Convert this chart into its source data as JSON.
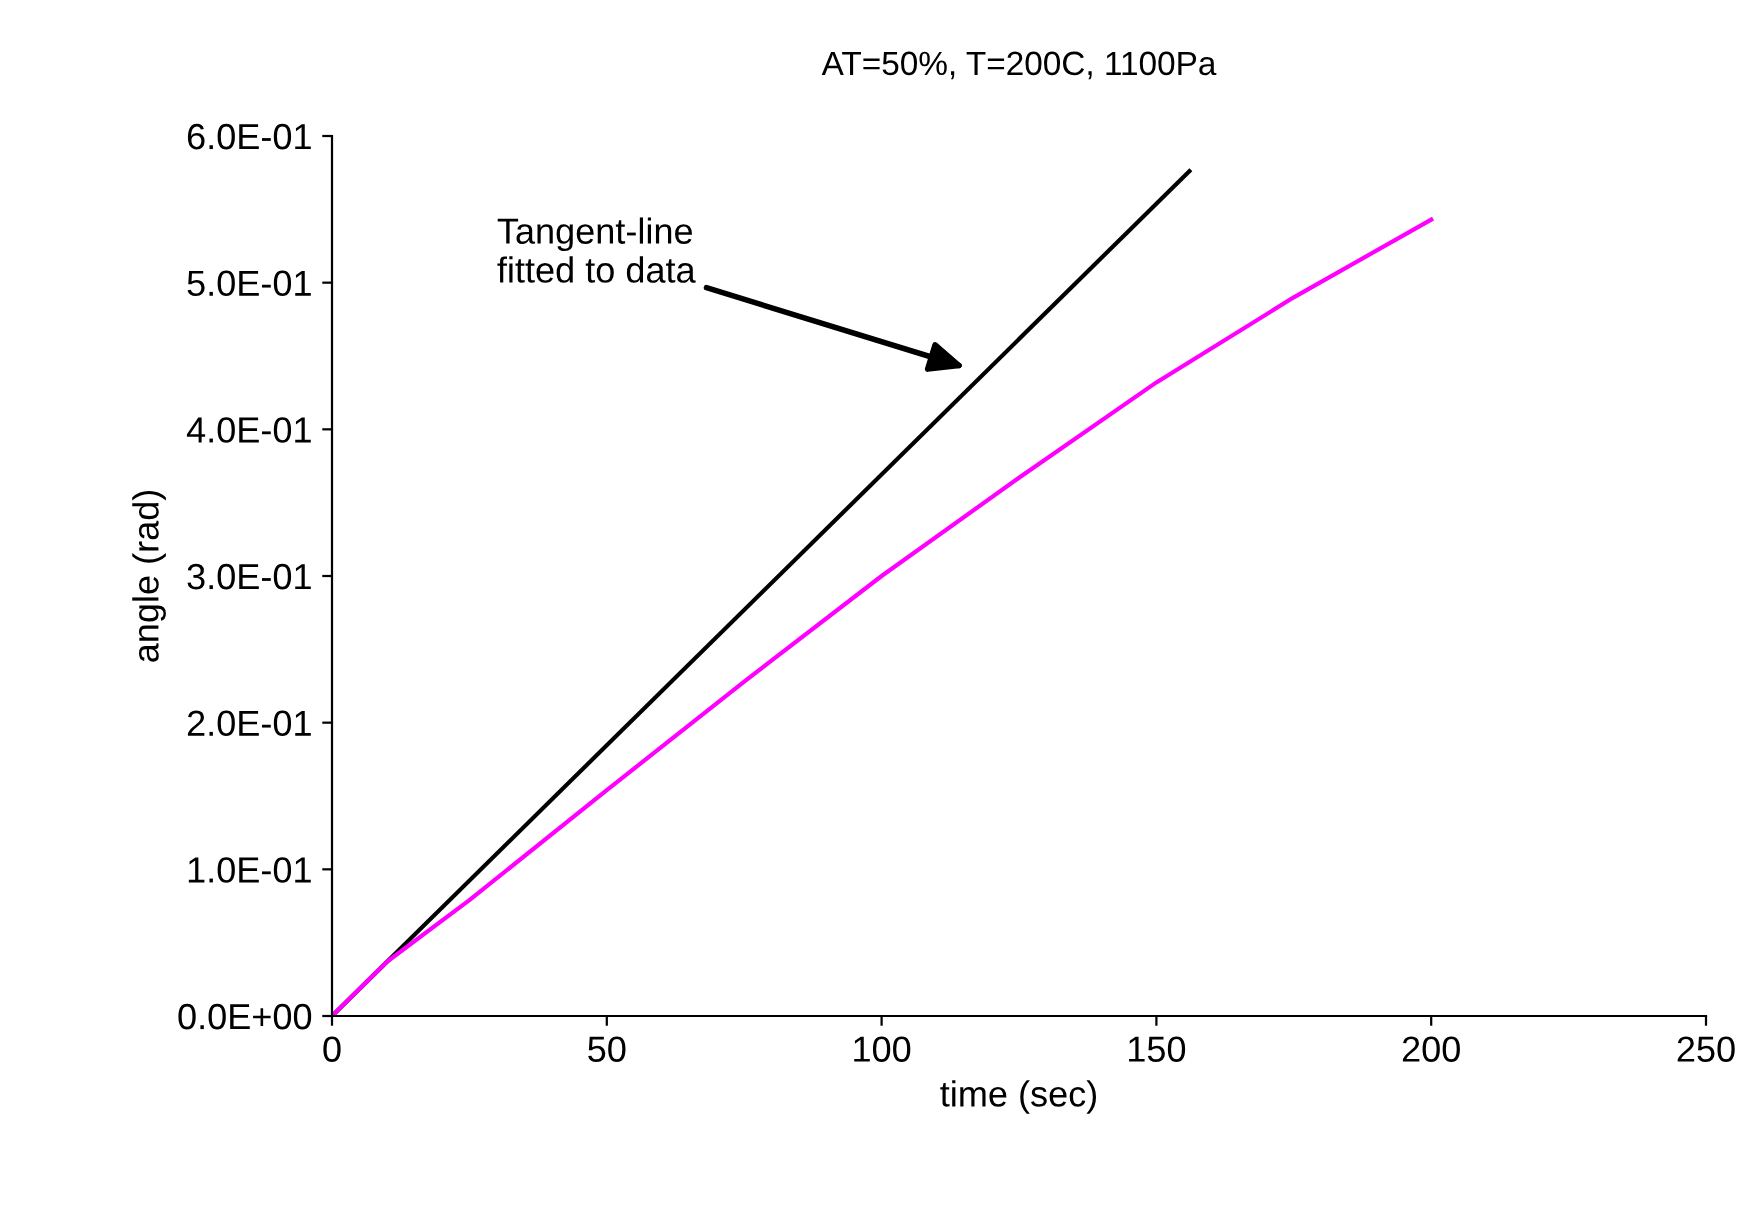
{
  "chart_data": {
    "type": "line",
    "title": "AT=50%, T=200C, 1100Pa",
    "xlabel": "time (sec)",
    "ylabel": "angle (rad)",
    "series": [
      {
        "color": "#000000",
        "x": [
          0,
          156
        ],
        "values": [
          0,
          0.576
        ]
      },
      {
        "color": "#ff00ff",
        "x": [
          0,
          10,
          25,
          50,
          75,
          100,
          125,
          150,
          175,
          200
        ],
        "values": [
          0,
          0.037,
          0.079,
          0.154,
          0.228,
          0.3,
          0.367,
          0.432,
          0.49,
          0.543
        ]
      }
    ],
    "annotations": [
      "Tangent-line\nfitted to data"
    ],
    "xlim": [
      0,
      250
    ],
    "xticks": [
      0,
      50,
      100,
      150,
      200,
      250
    ],
    "ylim": [
      0,
      0.6
    ],
    "yticks": [
      {
        "value": 0,
        "label": "0.0E+00"
      },
      {
        "value": 0.1,
        "label": "1.0E-01"
      },
      {
        "value": 0.2,
        "label": "2.0E-01"
      },
      {
        "value": 0.3,
        "label": "3.0E-01"
      },
      {
        "value": 0.4,
        "label": "4.0E-01"
      },
      {
        "value": 0.5,
        "label": "5.0E-01"
      },
      {
        "value": 0.6,
        "label": "6.0E-01"
      }
    ],
    "grid": false,
    "legend": false,
    "marker": "none",
    "line_style": "solid"
  }
}
